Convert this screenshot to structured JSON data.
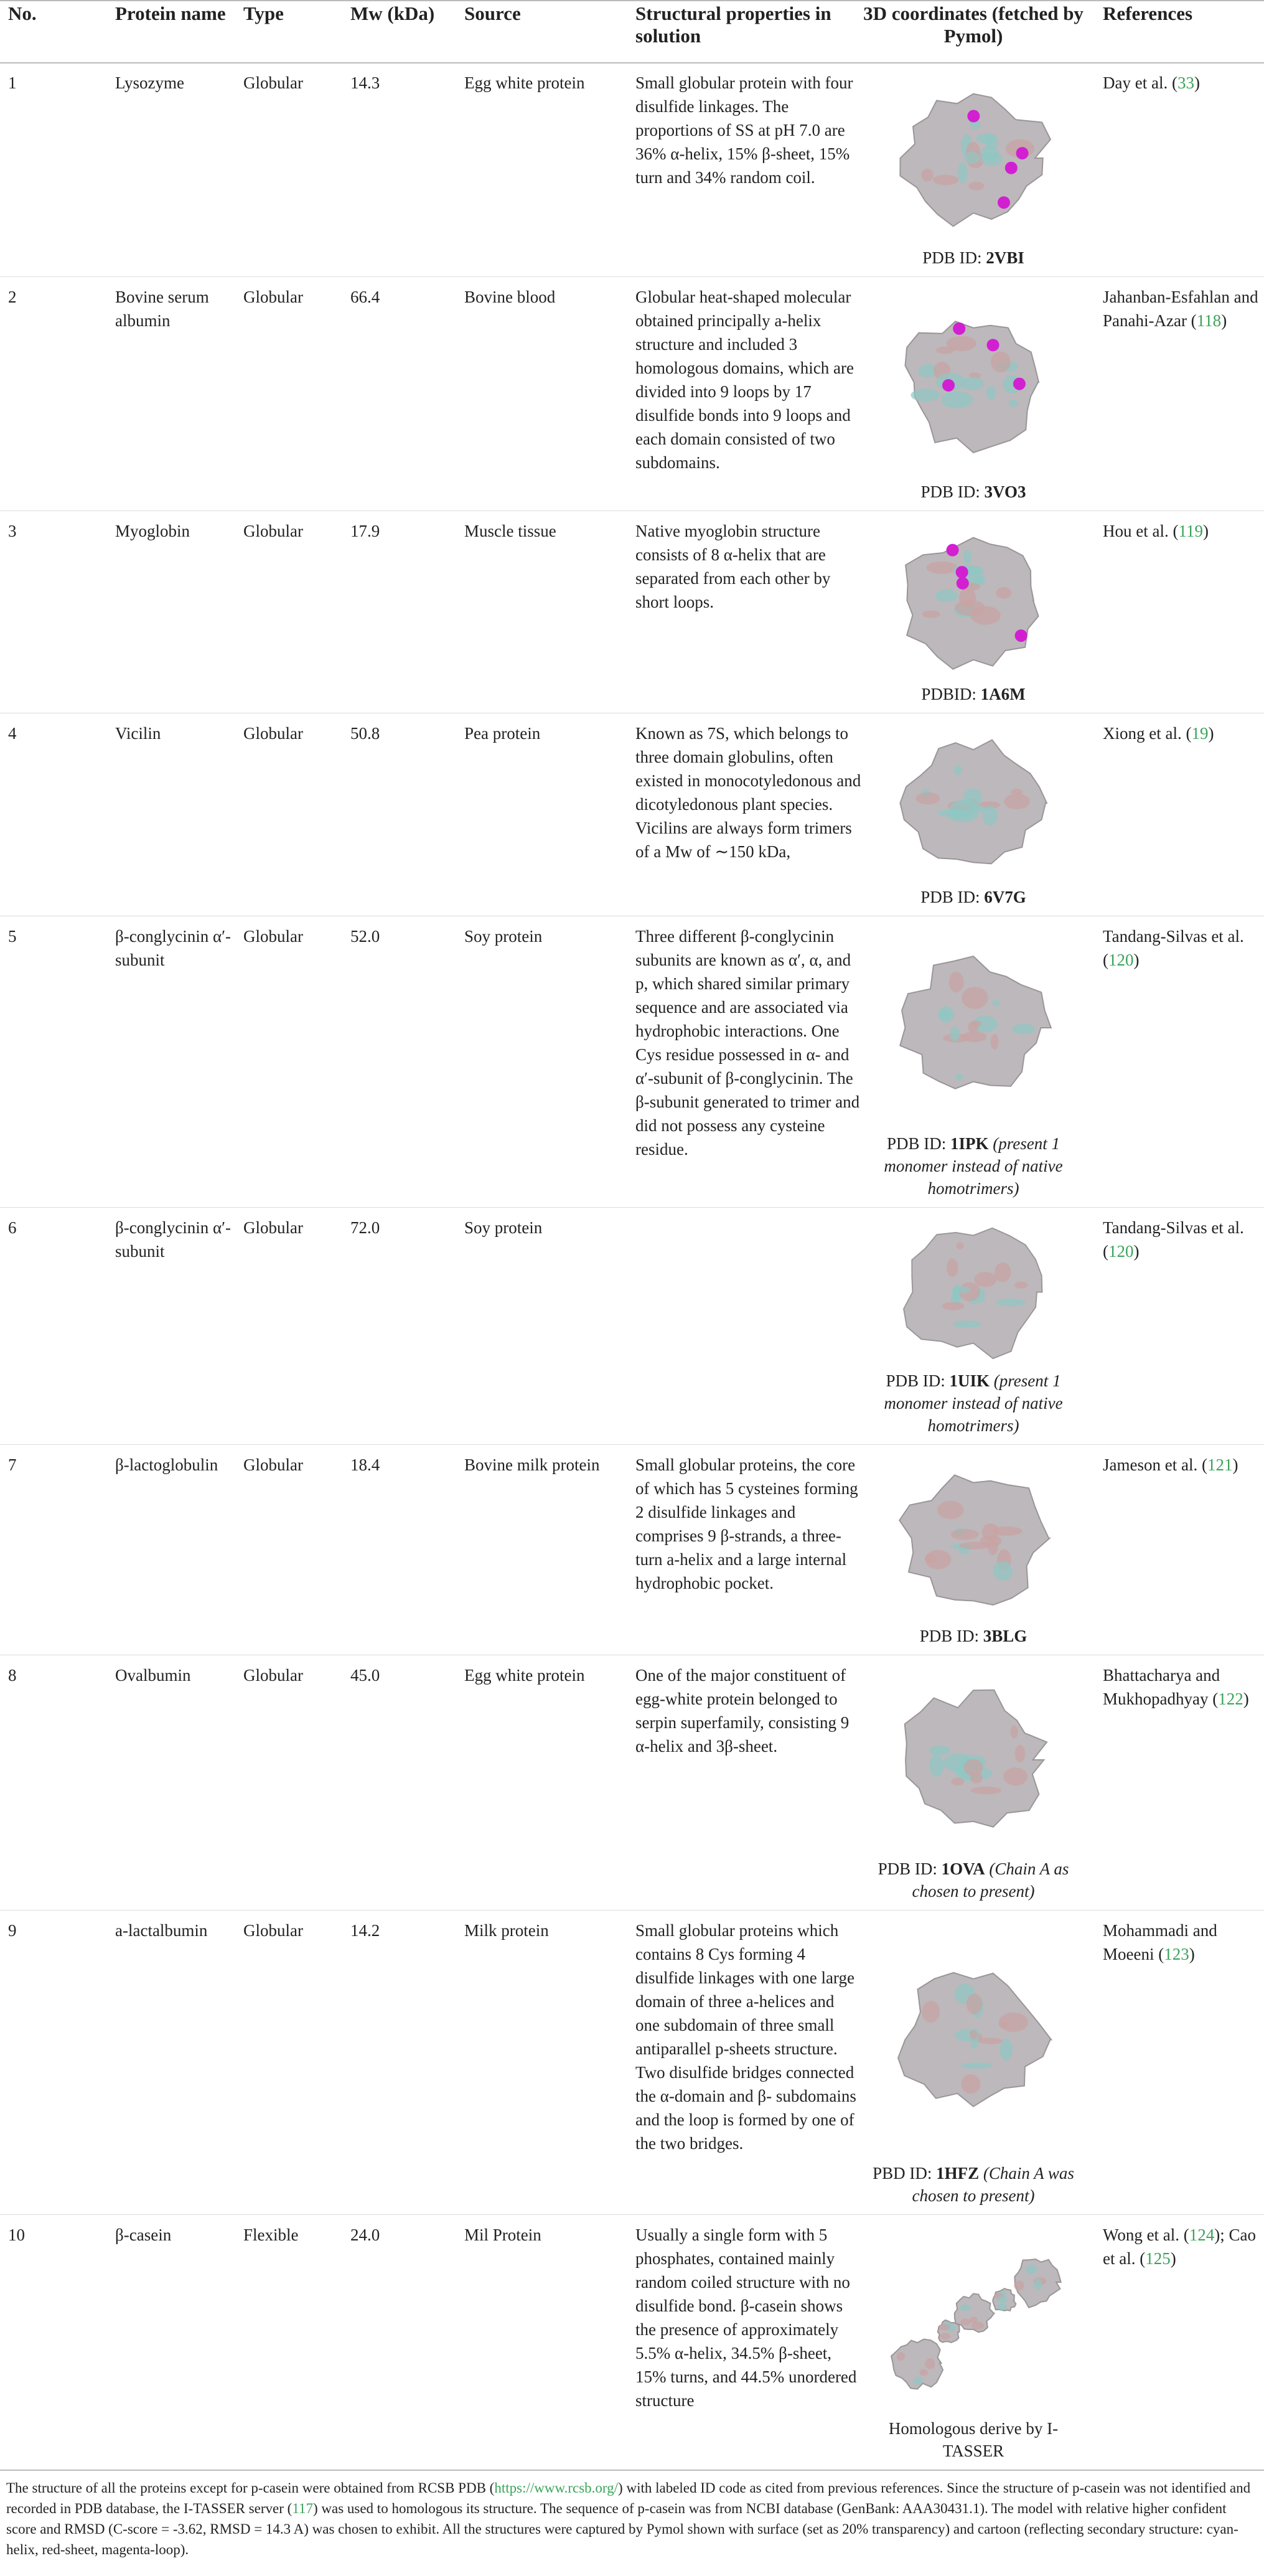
{
  "header": {
    "columns": [
      "No.",
      "Protein name",
      "Type",
      "Mw (kDa)",
      "Source",
      "Structural properties in solution",
      "3D coordinates (fetched by Pymol)",
      "References"
    ]
  },
  "table": {
    "rows": [
      {
        "no": "1",
        "name": "Lysozyme",
        "type": "Globular",
        "mw": "14.3",
        "source": "Egg white protein",
        "properties": "Small globular protein with four disulfide linkages. The proportions of SS at pH 7.0 are 36% α-helix, 15% β-sheet, 15% turn and 34% random coil.",
        "structure": {
          "prefix": "PDB ID:",
          "id": "2VBI"
        },
        "references": [
          "Day et al. (",
          "33",
          ")"
        ]
      },
      {
        "no": "2",
        "name": "Bovine serum albumin",
        "type": "Globular",
        "mw": "66.4",
        "source": "Bovine blood",
        "properties": "Globular heat-shaped molecular obtained principally a-helix structure and included 3 homologous domains, which are divided into 9 loops by 17 disulfide bonds into 9 loops and each domain consisted of two subdomains.",
        "structure": {
          "prefix": "PDB ID:",
          "id": "3VO3"
        },
        "references": [
          "Jahanban-Esfahlan and Panahi-Azar (",
          "118",
          ")"
        ]
      },
      {
        "no": "3",
        "name": "Myoglobin",
        "type": "Globular",
        "mw": "17.9",
        "source": "Muscle tissue",
        "properties": "Native myoglobin structure consists of 8 α-helix that are separated from each other by short loops.",
        "structure": {
          "prefix": "PDBID:",
          "id": "1A6M"
        },
        "references": [
          "Hou et al. (",
          "119",
          ")"
        ]
      },
      {
        "no": "4",
        "name": "Vicilin",
        "type": "Globular",
        "mw": "50.8",
        "source": "Pea protein",
        "properties": "Known as 7S, which belongs to three domain globulins, often existed in monocotyledonous and dicotyledonous plant species. Vicilins are always form trimers of a Mw of ∼150 kDa,",
        "structure": {
          "prefix": "PDB ID:",
          "id": "6V7G"
        },
        "references": [
          "Xiong et al. (",
          "19",
          ")"
        ]
      },
      {
        "no": "5",
        "name": "β-conglycinin α′-subunit",
        "type": "Globular",
        "mw": "52.0",
        "source": "Soy protein",
        "properties": "Three different β-conglycinin subunits are known as α′, α, and p, which shared similar primary sequence and are associated via hydrophobic interactions. One Cys residue possessed in α- and α′-subunit of β-conglycinin. The β-subunit generated to trimer and did not possess any cysteine residue.",
        "structure": {
          "prefix": "PDB ID:",
          "id": "1IPK",
          "note": "(present 1 monomer instead of native homotrimers)"
        },
        "references": [
          "Tandang-Silvas et al. (",
          "120",
          ")"
        ]
      },
      {
        "no": "6",
        "name": "β-conglycinin α′-subunit",
        "type": "Globular",
        "mw": "72.0",
        "source": "Soy protein",
        "structure": {
          "prefix": "PDB ID:",
          "id": "1UIK",
          "note": "(present 1 monomer instead of native homotrimers)"
        },
        "references": [
          "Tandang-Silvas et al. (",
          "120",
          ")"
        ]
      },
      {
        "no": "7",
        "name": "β-lactoglobulin",
        "type": "Globular",
        "mw": "18.4",
        "source": "Bovine milk protein",
        "properties": "Small globular proteins, the core of which has 5 cysteines forming 2 disulfide linkages and comprises 9 β-strands, a three-turn a-helix and a large internal hydrophobic pocket.",
        "structure": {
          "prefix": "PDB ID:",
          "id": "3BLG"
        },
        "references": [
          "Jameson et al. (",
          "121",
          ")"
        ]
      },
      {
        "no": "8",
        "name": "Ovalbumin",
        "type": "Globular",
        "mw": "45.0",
        "source": "Egg white protein",
        "properties": "One of the major constituent of egg-white protein belonged to serpin superfamily, consisting 9 α-helix and 3β-sheet.",
        "structure": {
          "prefix": "PDB ID:",
          "id": "1OVA",
          "note": "(Chain A as chosen to present)"
        },
        "references": [
          "Bhattacharya and Mukhopadhyay (",
          "122",
          ")"
        ]
      },
      {
        "no": "9",
        "name": "a-lactalbumin",
        "type": "Globular",
        "mw": "14.2",
        "source": "Milk protein",
        "properties": "Small globular proteins which contains 8 Cys forming 4 disulfide linkages with one large domain of three a-helices and one subdomain of three small antiparallel p-sheets structure. Two disulfide bridges connected the α-domain and β- subdomains and the loop is formed by one of the two bridges.",
        "structure": {
          "prefix": "PBD ID:",
          "id": "1HFZ",
          "note": "(Chain A was chosen to present)"
        },
        "references": [
          "Mohammadi and Moeeni (",
          "123",
          ")"
        ]
      },
      {
        "no": "10",
        "name": "β-casein",
        "type": "Flexible",
        "mw": "24.0",
        "source": "Mil Protein",
        "properties": "Usually a single form with 5 phosphates, contained mainly random coiled structure with no disulfide bond. β-casein shows the presence of approximately 5.5% α-helix, 34.5% β-sheet, 15% turns, and 44.5% unordered structure",
        "structure": {
          "text": "Homologous derive by I-TASSER"
        },
        "references": [
          "Wong et al. (",
          "124",
          "); Cao et al. (",
          "125",
          ")"
        ]
      }
    ]
  },
  "footnote": [
    "The structure of all the proteins except for p-casein were obtained from RCSB PDB (",
    "https://www.rcsb.org/",
    ") with labeled ID code as cited from previous references. Since the structure of p-casein was not identified and recorded in PDB database, the I-TASSER server (",
    "117",
    ") was used to homologous its structure. The sequence of p-casein was from NCBI database (GenBank: AAA30431.1). The model with relative higher confident score and RMSD (C-score = -3.62, RMSD = 14.3 A) was chosen to exhibit. All the structures were captured by Pymol shown with surface (set as 20% transparency) and cartoon (reflecting secondary structure: cyan-helix, red-sheet, magenta-loop)."
  ]
}
